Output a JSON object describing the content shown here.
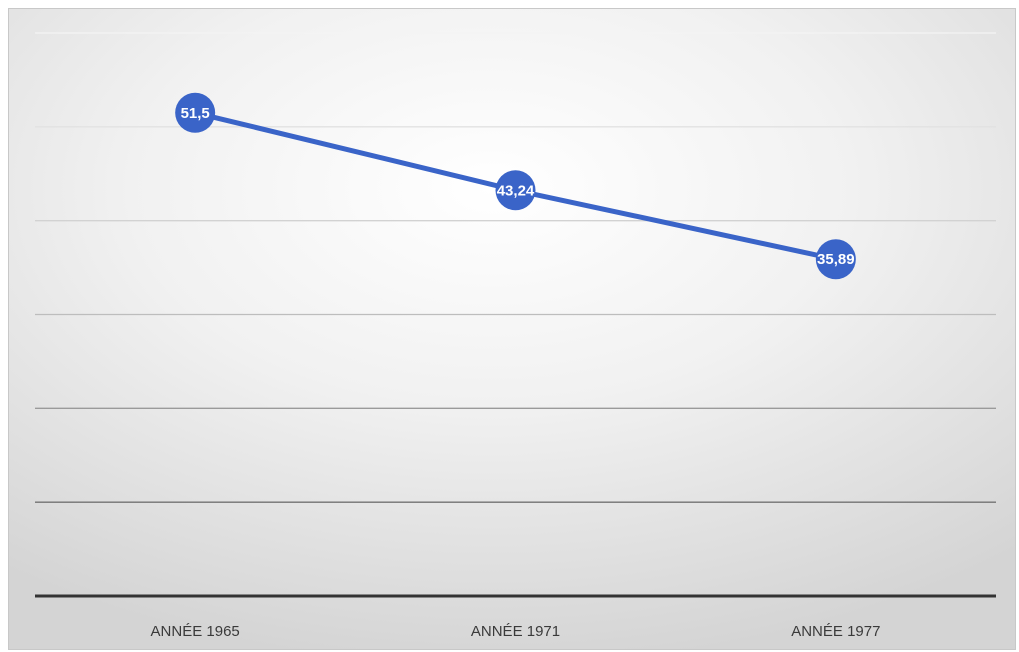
{
  "chart_data": {
    "type": "line",
    "title": "",
    "xlabel": "",
    "ylabel": "",
    "categories": [
      "ANNÉE 1965",
      "ANNÉE 1971",
      "ANNÉE 1977"
    ],
    "series": [
      {
        "values": [
          51.5,
          43.24,
          35.89
        ],
        "data_labels": [
          "51,5",
          "43,24",
          "35,89"
        ],
        "color": "#3a64c8"
      }
    ],
    "ylim": [
      0,
      60
    ],
    "y_gridlines": [
      10,
      20,
      30,
      40,
      50,
      60
    ],
    "y_tick_labels_shown": false,
    "grid": true,
    "legend": "none",
    "gridline_colors": [
      "#f4f4f4",
      "#e2e2e2",
      "#d2d2d2",
      "#bdbdbd",
      "#9a9a9a",
      "#727272"
    ],
    "axis_color": "#333333"
  }
}
